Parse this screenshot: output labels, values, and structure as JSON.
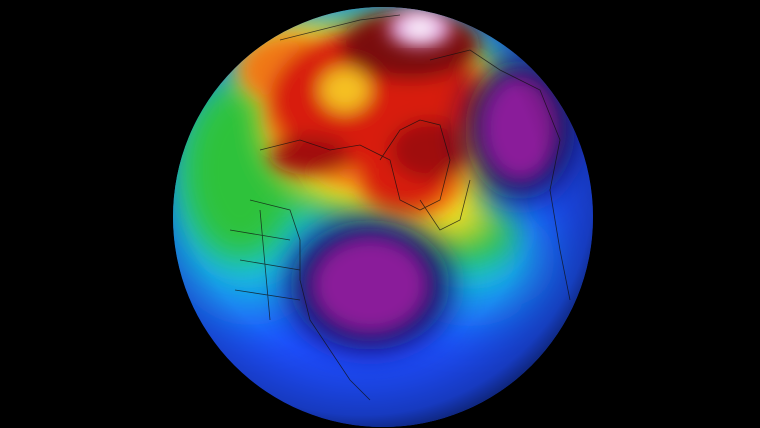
{
  "map": {
    "projection": "orthographic",
    "background": "#000000",
    "palette": {
      "low_core": "#8a1a9a",
      "low_rim": "#1a0a60",
      "blue": "#1e4dff",
      "cyan": "#19c8e0",
      "green": "#2ec23a",
      "yellow": "#f5e020",
      "orange": "#f07818",
      "red": "#d81a10",
      "dark_red": "#7a0a08",
      "high_core": "#ffffff"
    },
    "features": [
      "pressure-low-north-america",
      "pressure-low-eurasia",
      "pressure-high-arctic"
    ]
  }
}
